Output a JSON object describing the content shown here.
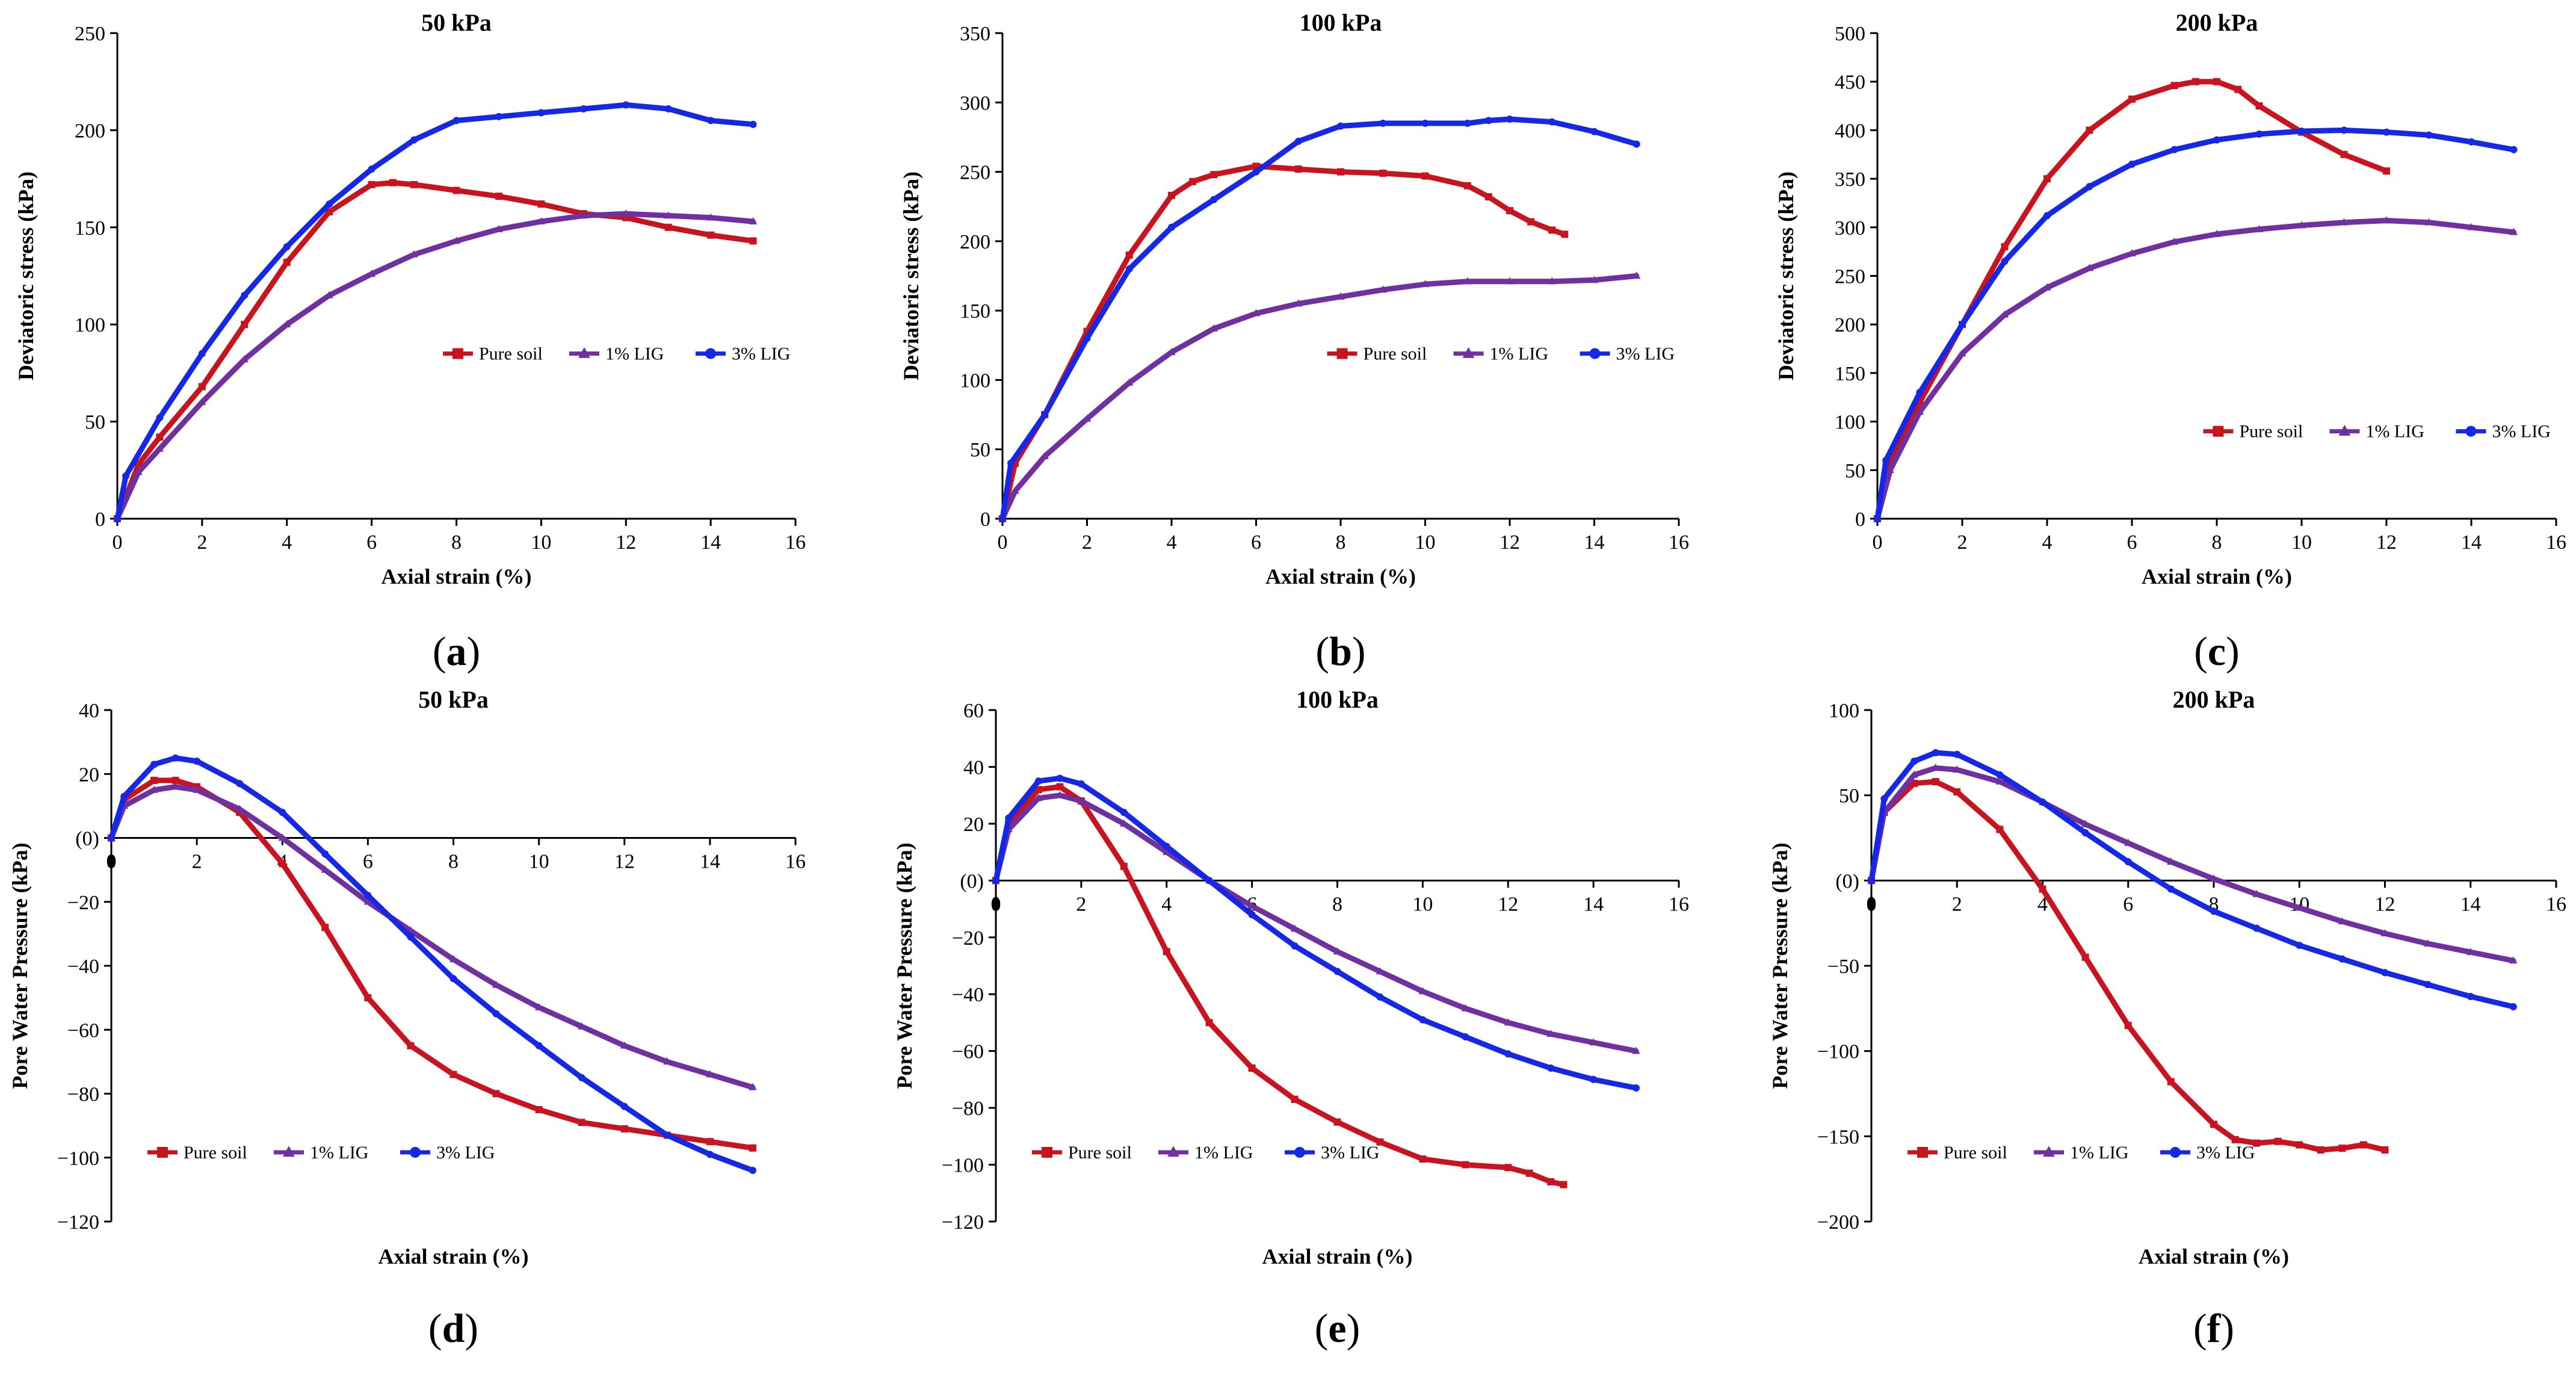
{
  "colors": {
    "pure_soil": "#c8141e",
    "lig_1": "#7030a0",
    "lig_3": "#1428e6",
    "axis": "#000000"
  },
  "chart_data": [
    {
      "panel": "(a)",
      "panel_letter": "a",
      "type": "line",
      "title": "50 kPa",
      "xlabel": "Axial strain (%)",
      "ylabel": "Deviatoric stress (kPa)",
      "xlim": [
        0,
        16
      ],
      "ylim": [
        0,
        250
      ],
      "xticks": [
        0,
        2,
        4,
        6,
        8,
        10,
        12,
        14,
        16
      ],
      "yticks": [
        0,
        50,
        100,
        150,
        200,
        250
      ],
      "legend": "center-right",
      "series": [
        {
          "name": "Pure soil",
          "x": [
            0,
            0.5,
            1,
            2,
            3,
            4,
            5,
            6,
            6.5,
            7,
            8,
            9,
            10,
            11,
            12,
            13,
            14,
            15
          ],
          "y": [
            0,
            28,
            42,
            68,
            100,
            132,
            158,
            172,
            173,
            172,
            169,
            166,
            162,
            157,
            155,
            150,
            146,
            143
          ]
        },
        {
          "name": "1% LIG",
          "x": [
            0,
            0.5,
            1,
            2,
            3,
            4,
            5,
            6,
            7,
            8,
            9,
            10,
            11,
            12,
            13,
            14,
            15
          ],
          "y": [
            0,
            24,
            36,
            60,
            82,
            100,
            115,
            126,
            136,
            143,
            149,
            153,
            156,
            157,
            156,
            155,
            153
          ]
        },
        {
          "name": "3% LIG",
          "x": [
            0,
            0.2,
            1,
            2,
            3,
            4,
            5,
            6,
            7,
            8,
            9,
            10,
            11,
            12,
            13,
            14,
            15
          ],
          "y": [
            0,
            22,
            52,
            85,
            115,
            140,
            162,
            180,
            195,
            205,
            207,
            209,
            211,
            213,
            211,
            205,
            203
          ]
        }
      ]
    },
    {
      "panel": "(b)",
      "panel_letter": "b",
      "type": "line",
      "title": "100 kPa",
      "xlabel": "Axial strain (%)",
      "ylabel": "Deviatoric stress (kPa)",
      "xlim": [
        0,
        16
      ],
      "ylim": [
        0,
        350
      ],
      "xticks": [
        0,
        2,
        4,
        6,
        8,
        10,
        12,
        14,
        16
      ],
      "yticks": [
        0,
        50,
        100,
        150,
        200,
        250,
        300,
        350
      ],
      "legend": "center-right",
      "series": [
        {
          "name": "Pure soil",
          "x": [
            0,
            0.3,
            1,
            2,
            3,
            4,
            4.5,
            5,
            6,
            7,
            8,
            9,
            10,
            11,
            11.5,
            12,
            12.5,
            13,
            13.3
          ],
          "y": [
            0,
            40,
            75,
            135,
            190,
            233,
            243,
            248,
            254,
            252,
            250,
            249,
            247,
            240,
            232,
            222,
            214,
            208,
            205
          ]
        },
        {
          "name": "1% LIG",
          "x": [
            0,
            0.3,
            1,
            2,
            3,
            4,
            5,
            6,
            7,
            8,
            9,
            10,
            11,
            12,
            13,
            14,
            15
          ],
          "y": [
            0,
            20,
            45,
            72,
            98,
            120,
            137,
            148,
            155,
            160,
            165,
            169,
            171,
            171,
            171,
            172,
            175
          ]
        },
        {
          "name": "3% LIG",
          "x": [
            0,
            0.2,
            1,
            2,
            3,
            4,
            5,
            6,
            7,
            8,
            9,
            10,
            11,
            11.5,
            12,
            13,
            14,
            15
          ],
          "y": [
            0,
            40,
            75,
            130,
            180,
            210,
            230,
            250,
            272,
            283,
            285,
            285,
            285,
            287,
            288,
            286,
            279,
            270
          ]
        }
      ]
    },
    {
      "panel": "(c)",
      "panel_letter": "c",
      "type": "line",
      "title": "200 kPa",
      "xlabel": "Axial strain (%)",
      "ylabel": "Deviatoric stress (kPa)",
      "xlim": [
        0,
        16
      ],
      "ylim": [
        0,
        500
      ],
      "xticks": [
        0,
        2,
        4,
        6,
        8,
        10,
        12,
        14,
        16
      ],
      "yticks": [
        0,
        50,
        100,
        150,
        200,
        250,
        300,
        350,
        400,
        450,
        500
      ],
      "legend": "lower-right",
      "series": [
        {
          "name": "Pure soil",
          "x": [
            0,
            0.3,
            1,
            2,
            3,
            4,
            5,
            6,
            7,
            7.5,
            8,
            8.5,
            9,
            10,
            11,
            12
          ],
          "y": [
            0,
            60,
            120,
            200,
            280,
            350,
            400,
            432,
            446,
            450,
            450,
            442,
            425,
            398,
            375,
            358
          ]
        },
        {
          "name": "1% LIG",
          "x": [
            0,
            0.3,
            1,
            2,
            3,
            4,
            5,
            6,
            7,
            8,
            9,
            10,
            11,
            12,
            13,
            14,
            15
          ],
          "y": [
            0,
            50,
            110,
            170,
            210,
            238,
            258,
            273,
            285,
            293,
            298,
            302,
            305,
            307,
            305,
            300,
            295
          ]
        },
        {
          "name": "3% LIG",
          "x": [
            0,
            0.2,
            1,
            2,
            3,
            4,
            5,
            6,
            7,
            8,
            9,
            10,
            11,
            12,
            13,
            14,
            15
          ],
          "y": [
            0,
            60,
            130,
            200,
            265,
            312,
            342,
            365,
            380,
            390,
            396,
            399,
            400,
            398,
            395,
            388,
            380
          ]
        }
      ]
    },
    {
      "panel": "(d)",
      "panel_letter": "d",
      "type": "line",
      "title": "50 kPa",
      "xlabel": "Axial strain (%)",
      "ylabel": "Pore Water Pressure (kPa)",
      "xlim": [
        0,
        16
      ],
      "ylim": [
        -120,
        40
      ],
      "xticks": [
        0,
        2,
        4,
        6,
        8,
        10,
        12,
        14,
        16
      ],
      "yticks": [
        -120,
        -100,
        -80,
        -60,
        -40,
        -20,
        0,
        20,
        40
      ],
      "ytick_labels": [
        "−120",
        "−100",
        "−80",
        "−60",
        "−40",
        "−20",
        "(0)",
        "20",
        "40"
      ],
      "legend": "bottom",
      "series": [
        {
          "name": "Pure soil",
          "x": [
            0,
            0.3,
            1,
            1.5,
            2,
            3,
            4,
            5,
            6,
            7,
            8,
            9,
            10,
            11,
            12,
            13,
            14,
            15
          ],
          "y": [
            0,
            12,
            18,
            18,
            16,
            8,
            -8,
            -28,
            -50,
            -65,
            -74,
            -80,
            -85,
            -89,
            -91,
            -93,
            -95,
            -97
          ]
        },
        {
          "name": "1% LIG",
          "x": [
            0,
            0.3,
            1,
            1.5,
            2,
            3,
            4,
            5,
            6,
            7,
            8,
            9,
            10,
            11,
            12,
            13,
            14,
            15
          ],
          "y": [
            0,
            10,
            15,
            16,
            15,
            9,
            0,
            -10,
            -20,
            -29,
            -38,
            -46,
            -53,
            -59,
            -65,
            -70,
            -74,
            -78
          ]
        },
        {
          "name": "3% LIG",
          "x": [
            0,
            0.3,
            1,
            1.5,
            2,
            3,
            4,
            5,
            6,
            7,
            8,
            9,
            10,
            11,
            12,
            13,
            14,
            15
          ],
          "y": [
            0,
            13,
            23,
            25,
            24,
            17,
            8,
            -5,
            -18,
            -31,
            -44,
            -55,
            -65,
            -75,
            -84,
            -93,
            -99,
            -104
          ]
        }
      ]
    },
    {
      "panel": "(e)",
      "panel_letter": "e",
      "type": "line",
      "title": "100 kPa",
      "xlabel": "Axial strain (%)",
      "ylabel": "Pore Water Pressure (kPa)",
      "xlim": [
        0,
        16
      ],
      "ylim": [
        -120,
        60
      ],
      "xticks": [
        0,
        2,
        4,
        6,
        8,
        10,
        12,
        14,
        16
      ],
      "yticks": [
        -120,
        -100,
        -80,
        -60,
        -40,
        -20,
        0,
        20,
        40,
        60
      ],
      "ytick_labels": [
        "−120",
        "−100",
        "−80",
        "−60",
        "−40",
        "−20",
        "(0)",
        "20",
        "40",
        "60"
      ],
      "legend": "bottom",
      "series": [
        {
          "name": "Pure soil",
          "x": [
            0,
            0.3,
            1,
            1.5,
            2,
            3,
            4,
            5,
            6,
            7,
            8,
            9,
            10,
            11,
            12,
            12.5,
            13,
            13.3
          ],
          "y": [
            0,
            20,
            32,
            33,
            28,
            5,
            -25,
            -50,
            -66,
            -77,
            -85,
            -92,
            -98,
            -100,
            -101,
            -103,
            -106,
            -107
          ]
        },
        {
          "name": "1% LIG",
          "x": [
            0,
            0.3,
            1,
            1.5,
            2,
            3,
            4,
            5,
            6,
            7,
            8,
            9,
            10,
            11,
            12,
            13,
            14,
            15
          ],
          "y": [
            0,
            18,
            29,
            30,
            28,
            20,
            10,
            0,
            -9,
            -17,
            -25,
            -32,
            -39,
            -45,
            -50,
            -54,
            -57,
            -60
          ]
        },
        {
          "name": "3% LIG",
          "x": [
            0,
            0.3,
            1,
            1.5,
            2,
            3,
            4,
            5,
            6,
            7,
            8,
            9,
            10,
            11,
            12,
            13,
            14,
            15
          ],
          "y": [
            0,
            22,
            35,
            36,
            34,
            24,
            12,
            0,
            -12,
            -23,
            -32,
            -41,
            -49,
            -55,
            -61,
            -66,
            -70,
            -73
          ]
        }
      ]
    },
    {
      "panel": "(f)",
      "panel_letter": "f",
      "type": "line",
      "title": "200 kPa",
      "xlabel": "Axial strain (%)",
      "ylabel": "Pore Water Pressure (kPa)",
      "xlim": [
        0,
        16
      ],
      "ylim": [
        -200,
        100
      ],
      "xticks": [
        0,
        2,
        4,
        6,
        8,
        10,
        12,
        14,
        16
      ],
      "yticks": [
        -200,
        -150,
        -100,
        -50,
        0,
        50,
        100
      ],
      "ytick_labels": [
        "−200",
        "−150",
        "−100",
        "−50",
        "(0)",
        "50",
        "100"
      ],
      "legend": "bottom",
      "series": [
        {
          "name": "Pure soil",
          "x": [
            0,
            0.3,
            1,
            1.5,
            2,
            3,
            4,
            5,
            6,
            7,
            8,
            8.5,
            9,
            9.5,
            10,
            10.5,
            11,
            11.5,
            12
          ],
          "y": [
            0,
            40,
            57,
            58,
            52,
            30,
            -5,
            -45,
            -85,
            -118,
            -143,
            -152,
            -154,
            -153,
            -155,
            -158,
            -157,
            -155,
            -158
          ]
        },
        {
          "name": "1% LIG",
          "x": [
            0,
            0.3,
            1,
            1.5,
            2,
            3,
            4,
            5,
            6,
            7,
            8,
            9,
            10,
            11,
            12,
            13,
            14,
            15
          ],
          "y": [
            0,
            40,
            62,
            66,
            65,
            58,
            46,
            33,
            22,
            11,
            1,
            -8,
            -16,
            -24,
            -31,
            -37,
            -42,
            -47
          ]
        },
        {
          "name": "3% LIG",
          "x": [
            0,
            0.3,
            1,
            1.5,
            2,
            3,
            4,
            5,
            6,
            7,
            8,
            9,
            10,
            11,
            12,
            13,
            14,
            15
          ],
          "y": [
            0,
            48,
            70,
            75,
            74,
            62,
            46,
            28,
            11,
            -5,
            -18,
            -28,
            -38,
            -46,
            -54,
            -61,
            -68,
            -74
          ]
        }
      ]
    }
  ]
}
